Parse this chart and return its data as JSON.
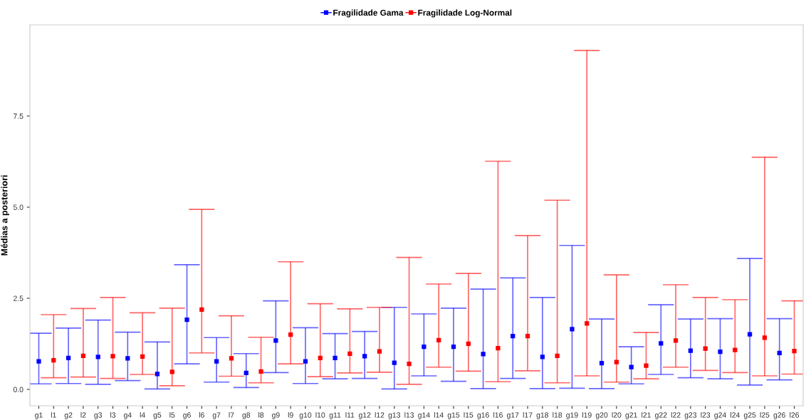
{
  "chart_data": {
    "type": "scatter",
    "ylabel": "Médias a posteriori",
    "categories": [
      "g1",
      "l1",
      "g2",
      "l2",
      "g3",
      "l3",
      "g4",
      "l4",
      "g5",
      "l5",
      "g6",
      "l6",
      "g7",
      "l7",
      "g8",
      "l8",
      "g9",
      "l9",
      "g10",
      "l10",
      "g11",
      "l11",
      "g12",
      "l12",
      "g13",
      "l13",
      "g14",
      "l14",
      "g15",
      "l15",
      "g16",
      "l16",
      "g17",
      "l17",
      "g18",
      "l18",
      "g19",
      "l19",
      "g20",
      "l20",
      "g21",
      "l21",
      "g22",
      "l22",
      "g23",
      "l23",
      "g24",
      "l24",
      "g25",
      "l25",
      "g26",
      "l26"
    ],
    "series": [
      {
        "name": "Fragilidade Gama",
        "color": "#0000ff",
        "values": [
          0.77,
          null,
          0.86,
          null,
          0.89,
          null,
          0.85,
          null,
          0.42,
          null,
          1.91,
          null,
          0.77,
          null,
          0.45,
          null,
          1.34,
          null,
          0.77,
          null,
          0.86,
          null,
          0.91,
          null,
          0.73,
          null,
          1.17,
          null,
          1.17,
          null,
          0.97,
          null,
          1.46,
          null,
          0.89,
          null,
          1.65,
          null,
          0.72,
          null,
          0.61,
          null,
          1.26,
          null,
          1.06,
          null,
          1.03,
          null,
          1.51,
          null,
          1.0,
          null
        ],
        "errors": [
          [
            0.15,
            1.54
          ],
          null,
          [
            0.16,
            1.68
          ],
          null,
          [
            0.14,
            1.9
          ],
          null,
          [
            0.24,
            1.57
          ],
          null,
          [
            0.01,
            1.3
          ],
          null,
          [
            0.7,
            3.42
          ],
          null,
          [
            0.2,
            1.42
          ],
          null,
          [
            0.05,
            0.98
          ],
          null,
          [
            0.46,
            2.43
          ],
          null,
          [
            0.16,
            1.69
          ],
          null,
          [
            0.29,
            1.53
          ],
          null,
          [
            0.3,
            1.59
          ],
          null,
          [
            0.01,
            2.25
          ],
          null,
          [
            0.37,
            2.07
          ],
          null,
          [
            0.22,
            2.23
          ],
          null,
          [
            0.02,
            2.75
          ],
          null,
          [
            0.3,
            3.06
          ],
          null,
          [
            0.02,
            2.52
          ],
          null,
          [
            0.03,
            3.95
          ],
          null,
          [
            0.02,
            1.93
          ],
          null,
          [
            0.15,
            1.17
          ],
          null,
          [
            0.41,
            2.32
          ],
          null,
          [
            0.32,
            1.93
          ],
          null,
          [
            0.29,
            1.94
          ],
          null,
          [
            0.12,
            3.59
          ],
          null,
          [
            0.26,
            1.94
          ],
          null
        ]
      },
      {
        "name": "Fragilidade Log-Normal",
        "color": "#ff0000",
        "values": [
          null,
          0.8,
          null,
          0.92,
          null,
          0.91,
          null,
          0.9,
          null,
          0.48,
          null,
          2.19,
          null,
          0.85,
          null,
          0.49,
          null,
          1.5,
          null,
          0.86,
          null,
          0.98,
          null,
          1.04,
          null,
          0.7,
          null,
          1.35,
          null,
          1.25,
          null,
          1.13,
          null,
          1.46,
          null,
          0.92,
          null,
          1.81,
          null,
          0.75,
          null,
          0.65,
          null,
          1.34,
          null,
          1.12,
          null,
          1.08,
          null,
          1.42,
          null,
          1.05
        ],
        "errors": [
          null,
          [
            0.32,
            2.05
          ],
          null,
          [
            0.34,
            2.22
          ],
          null,
          [
            0.3,
            2.52
          ],
          null,
          [
            0.41,
            2.1
          ],
          null,
          [
            0.1,
            2.23
          ],
          null,
          [
            1.0,
            4.94
          ],
          null,
          [
            0.36,
            2.02
          ],
          null,
          [
            0.18,
            1.43
          ],
          null,
          [
            0.7,
            3.5
          ],
          null,
          [
            0.35,
            2.35
          ],
          null,
          [
            0.45,
            2.21
          ],
          null,
          [
            0.47,
            2.25
          ],
          null,
          [
            0.14,
            3.62
          ],
          null,
          [
            0.61,
            2.89
          ],
          null,
          [
            0.5,
            3.18
          ],
          null,
          [
            0.21,
            6.26
          ],
          null,
          [
            0.51,
            4.22
          ],
          null,
          [
            0.18,
            5.19
          ],
          null,
          [
            0.37,
            9.3
          ],
          null,
          [
            0.2,
            3.14
          ],
          null,
          [
            0.29,
            1.56
          ],
          null,
          [
            0.61,
            2.87
          ],
          null,
          [
            0.52,
            2.52
          ],
          null,
          [
            0.46,
            2.46
          ],
          null,
          [
            0.37,
            6.37
          ],
          null,
          [
            0.42,
            2.43
          ]
        ]
      }
    ],
    "ylim": [
      -0.45,
      10.0
    ],
    "yticks": [
      {
        "value": 0,
        "label": "0.0"
      },
      {
        "value": 2.5,
        "label": "2.5"
      },
      {
        "value": 5,
        "label": "5.0"
      },
      {
        "value": 7.5,
        "label": "7.5"
      }
    ],
    "legend": "top",
    "marker": "square"
  }
}
